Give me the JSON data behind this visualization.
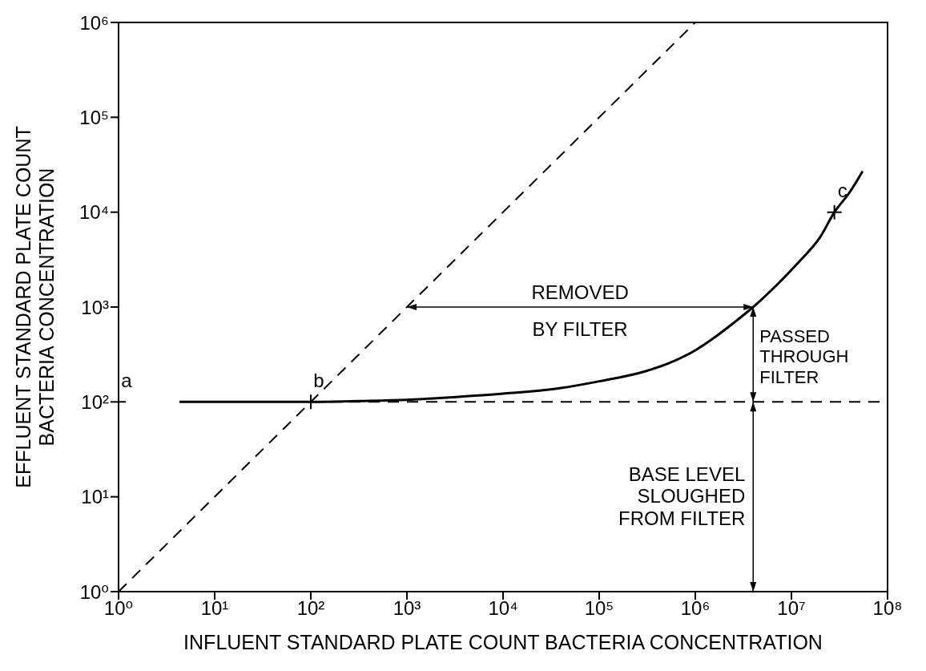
{
  "chart_data": {
    "type": "line",
    "xlabel": "INFLUENT STANDARD PLATE COUNT BACTERIA CONCENTRATION",
    "ylabel": "EFFLUENT STANDARD PLATE COUNT\nBACTERIA CONCENTRATION",
    "log": "xy",
    "xlim": [
      1,
      100000000
    ],
    "ylim": [
      1,
      1000000
    ],
    "xticks": [
      {
        "value": 1,
        "label": "10⁰"
      },
      {
        "value": 10,
        "label": "10¹"
      },
      {
        "value": 100,
        "label": "10²"
      },
      {
        "value": 1000,
        "label": "10³"
      },
      {
        "value": 10000,
        "label": "10⁴"
      },
      {
        "value": 100000,
        "label": "10⁵"
      },
      {
        "value": 1000000,
        "label": "10⁶"
      },
      {
        "value": 10000000,
        "label": "10⁷"
      },
      {
        "value": 100000000,
        "label": "10⁸"
      }
    ],
    "yticks": [
      {
        "value": 1,
        "label": "10⁰"
      },
      {
        "value": 10,
        "label": "10¹"
      },
      {
        "value": 100,
        "label": "10²"
      },
      {
        "value": 1000,
        "label": "10³"
      },
      {
        "value": 10000,
        "label": "10⁴"
      },
      {
        "value": 100000,
        "label": "10⁵"
      },
      {
        "value": 1000000,
        "label": "10⁶"
      }
    ],
    "series": [
      {
        "color": "#000000",
        "line_style": "solid",
        "x": [
          4.3,
          30,
          100,
          300,
          1000,
          3000,
          10000,
          40000,
          100000,
          300000,
          600000,
          1000000,
          1550000,
          2500000,
          4000000,
          7000000,
          12000000,
          20000000,
          28000000,
          40000000,
          55000000
        ],
        "values": [
          100,
          100,
          100,
          102,
          105,
          112,
          122,
          140,
          165,
          210,
          270,
          350,
          470,
          680,
          1000,
          1700,
          3000,
          5500,
          10000,
          16000,
          27000
        ]
      },
      {
        "color": "#000000",
        "line_style": "dashed",
        "x": [
          1,
          1000000
        ],
        "values": [
          1,
          1000000
        ]
      },
      {
        "color": "#000000",
        "line_style": "dashed",
        "x": [
          100,
          100000000
        ],
        "values": [
          100,
          100
        ]
      },
      {
        "type": "scatter",
        "color": "#000000",
        "marker": "cross",
        "x": [
          1,
          100,
          28000000
        ],
        "values": [
          100,
          100,
          10000
        ],
        "value_labels": [
          "a",
          "b",
          "c"
        ]
      }
    ],
    "annotations": [
      "REMOVED\nBY FILTER",
      {
        "text": "PASSED\nTHROUGH\nFILTER",
        "x": 4000000,
        "y": 1000
      },
      "BASE LEVEL\nSLOUGHED\nFROM FILTER"
    ]
  }
}
